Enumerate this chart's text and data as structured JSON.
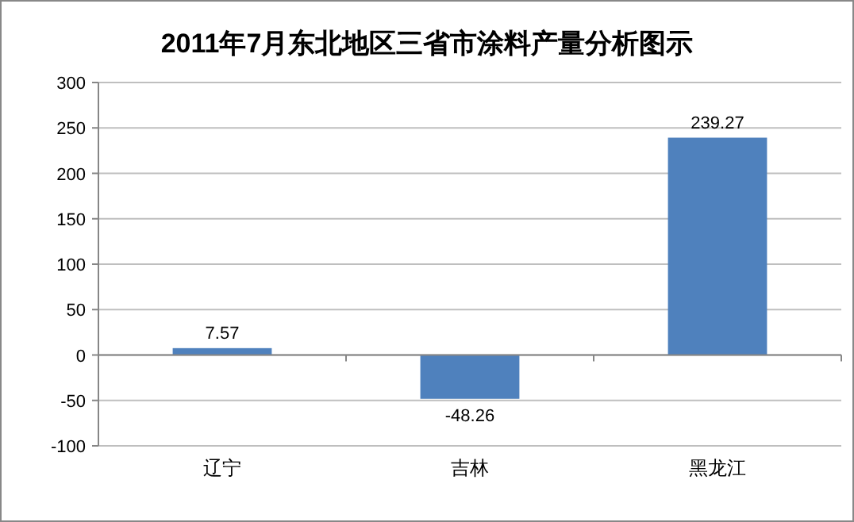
{
  "chart_data": {
    "type": "bar",
    "title": "2011年7月东北地区三省市涂料产量分析图示",
    "categories": [
      "辽宁",
      "吉林",
      "黑龙江"
    ],
    "values": [
      7.57,
      -48.26,
      239.27
    ],
    "color": "#4f81bd",
    "ylim": [
      -100,
      300
    ],
    "yticks": [
      -100,
      -50,
      0,
      50,
      100,
      150,
      200,
      250,
      300
    ],
    "grid": "y",
    "data_labels": true
  }
}
